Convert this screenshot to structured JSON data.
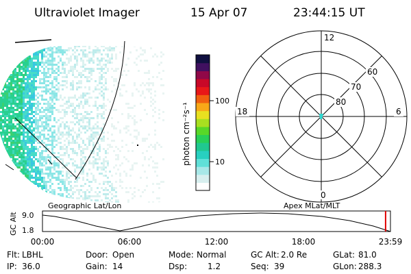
{
  "header": {
    "instrument": "Ultraviolet Imager",
    "date": "15 Apr 07",
    "time": "23:44:15 UT"
  },
  "colorbar": {
    "label": "photon cm⁻²s⁻¹",
    "ticks": [
      "100",
      "10"
    ],
    "colors": [
      "#ffffff",
      "#d8efef",
      "#a8e8e8",
      "#60e0d8",
      "#28d0c0",
      "#20c890",
      "#28d058",
      "#58d828",
      "#a8e020",
      "#e8e020",
      "#f8a818",
      "#f06010",
      "#e81818",
      "#c80828",
      "#900848",
      "#401060",
      "#101040"
    ]
  },
  "polar_plot": {
    "hour_labels": {
      "top": "12",
      "left": "18",
      "right": "6",
      "bottom": "0"
    },
    "lat_labels": [
      "60",
      "70",
      "80"
    ]
  },
  "image_labels": {
    "left": "Geographic Lat/Lon",
    "right": "Apex MLat/MLT"
  },
  "altitude_strip": {
    "axis_title": "GC Alt",
    "y_ticks": [
      "9.0",
      "1.8"
    ],
    "time_ticks": [
      "00:00",
      "06:00",
      "12:00",
      "18:00",
      "23:59"
    ],
    "current_position": 0.986
  },
  "footer": {
    "row1": [
      {
        "label": "Flt:",
        "value": "LBHL"
      },
      {
        "label": "Door:",
        "value": "Open"
      },
      {
        "label": "Mode:",
        "value": "Normal"
      },
      {
        "label": "GC Alt:",
        "value": "2.0 Re"
      },
      {
        "label": "GLat:",
        "value": "81.0"
      }
    ],
    "row2": [
      {
        "label": "IP:",
        "value": "36.0"
      },
      {
        "label": "Gain:",
        "value": "14"
      },
      {
        "label": "Dsp:",
        "value": "1.2"
      },
      {
        "label": "Seq:",
        "value": "39"
      },
      {
        "label": "GLon:",
        "value": "288.3"
      }
    ]
  }
}
